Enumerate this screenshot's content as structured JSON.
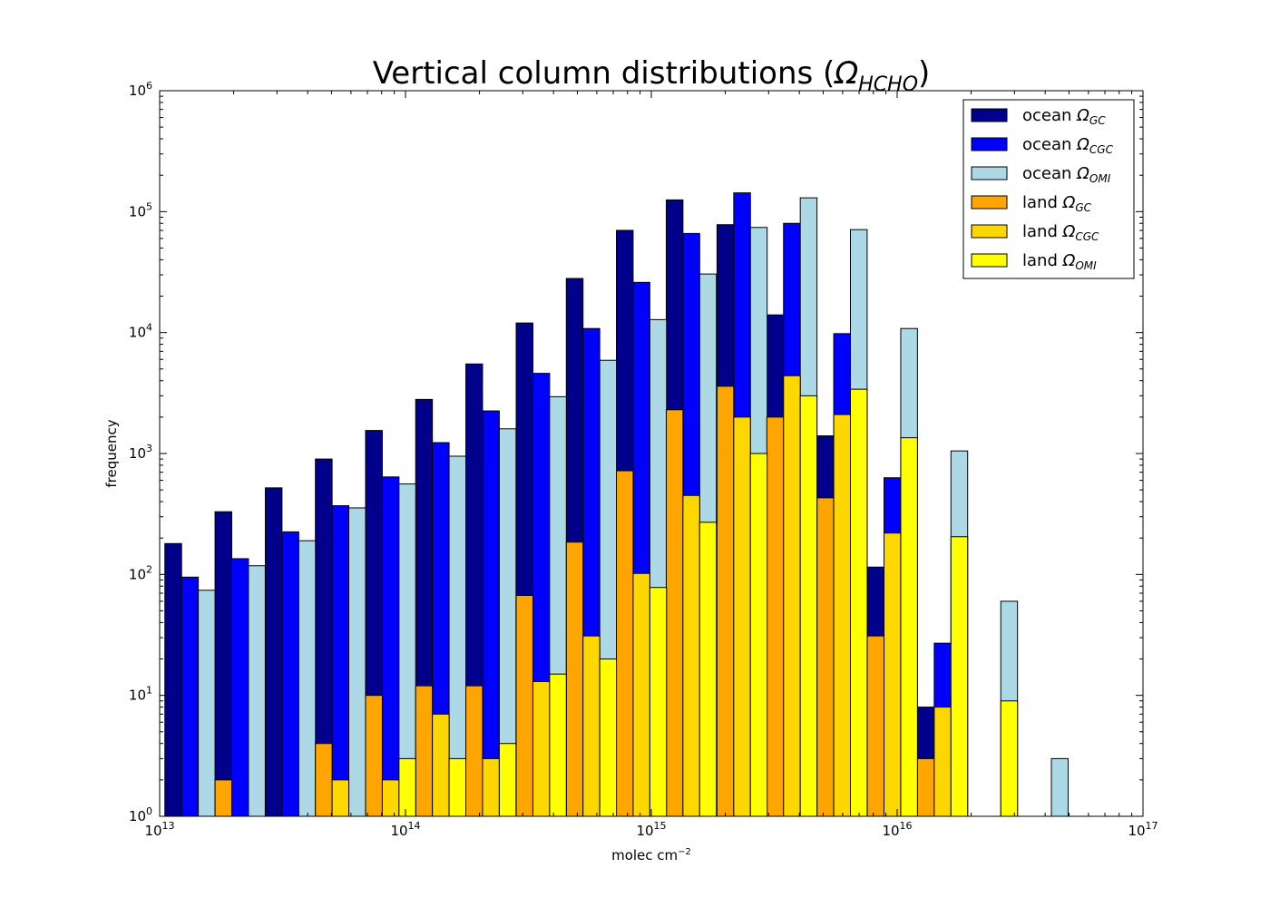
{
  "chart_data": {
    "type": "bar",
    "title_main": "Vertical column distributions (",
    "title_symbol": "Ω",
    "title_sub": "HCHO",
    "title_close": ")",
    "xlabel_main": "molec cm",
    "xlabel_sup": "−2",
    "ylabel": "frequency",
    "x_scale": "log",
    "y_scale": "log",
    "xlim": [
      10000000000000.0,
      1e+17
    ],
    "ylim": [
      1,
      1000000
    ],
    "grid": false,
    "legend_position": "top-right",
    "x_ticks": [
      {
        "base": "10",
        "exp": "13"
      },
      {
        "base": "10",
        "exp": "14"
      },
      {
        "base": "10",
        "exp": "15"
      },
      {
        "base": "10",
        "exp": "16"
      },
      {
        "base": "10",
        "exp": "17"
      }
    ],
    "y_ticks": [
      {
        "base": "10",
        "exp": "0"
      },
      {
        "base": "10",
        "exp": "1"
      },
      {
        "base": "10",
        "exp": "2"
      },
      {
        "base": "10",
        "exp": "3"
      },
      {
        "base": "10",
        "exp": "4"
      },
      {
        "base": "10",
        "exp": "5"
      },
      {
        "base": "10",
        "exp": "6"
      }
    ],
    "bin_starts": [
      10500000000000.0,
      16800000000000.0,
      26900000000000.0,
      43000000000000.0,
      68800000000000.0,
      110000000000000.0,
      176000000000000.0,
      282000000000000.0,
      451000000000000.0,
      721000000000000.0,
      1150000000000000.0,
      1850000000000000.0,
      2950000000000000.0,
      4720000000000000.0,
      7560000000000000.0,
      1.21e+16,
      1.93e+16,
      3.1e+16,
      4.95e+16
    ],
    "bin_width_log10": 0.204,
    "series": [
      {
        "name_main": "ocean ",
        "name_sub": "GC",
        "color": "#00008b",
        "group": "ocean",
        "slot": 0,
        "values": [
          180,
          330,
          520,
          900,
          1550,
          2800,
          5500,
          12000,
          28000,
          70000,
          125000,
          78000,
          14000,
          1400,
          115,
          8,
          0,
          0,
          0
        ]
      },
      {
        "name_main": "ocean ",
        "name_sub": "CGC",
        "color": "#0000ff",
        "group": "ocean",
        "slot": 1,
        "values": [
          95,
          135,
          225,
          370,
          640,
          1230,
          2250,
          4600,
          10800,
          26000,
          66000,
          143000,
          80000,
          9800,
          630,
          27,
          0,
          0,
          0
        ]
      },
      {
        "name_main": "ocean ",
        "name_sub": "OMI",
        "color": "#add8e6",
        "group": "ocean",
        "slot": 2,
        "values": [
          74,
          118,
          190,
          355,
          560,
          950,
          1600,
          2950,
          5900,
          12800,
          30500,
          74000,
          130000,
          71000,
          10800,
          1050,
          60,
          3,
          0
        ]
      },
      {
        "name_main": "land ",
        "name_sub": "GC",
        "color": "#ffa500",
        "group": "land",
        "slot": 0,
        "values": [
          0,
          2,
          0,
          4,
          10,
          12,
          12,
          67,
          185,
          720,
          2300,
          3600,
          2000,
          430,
          31,
          3,
          0,
          0,
          0
        ]
      },
      {
        "name_main": "land ",
        "name_sub": "CGC",
        "color": "#ffd700",
        "group": "land",
        "slot": 1,
        "values": [
          0,
          0,
          0,
          2,
          2,
          7,
          3,
          13,
          31,
          102,
          450,
          2000,
          4400,
          2100,
          220,
          8,
          0,
          0,
          0
        ]
      },
      {
        "name_main": "land ",
        "name_sub": "OMI",
        "color": "#ffff00",
        "group": "land",
        "slot": 2,
        "values": [
          0,
          0,
          0,
          0,
          3,
          3,
          4,
          15,
          20,
          78,
          270,
          1000,
          3000,
          3400,
          1350,
          205,
          9,
          0,
          0
        ]
      }
    ]
  }
}
